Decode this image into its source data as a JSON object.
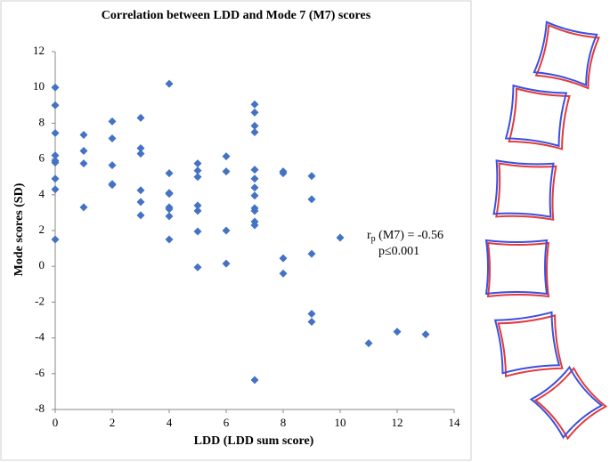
{
  "chart_data": {
    "type": "scatter",
    "title": "Correlation between LDD and Mode 7 (M7) scores",
    "x_label": "LDD (LDD sum score)",
    "y_label": "Mode scores (SD)",
    "annotation": {
      "r": "r",
      "subscript": "p",
      "rest": " (M7) = -0.56",
      "p_value": "p≤0.001"
    },
    "color": "#4472c4",
    "x": [
      0,
      0,
      0,
      0,
      0,
      0,
      0,
      0,
      0,
      1,
      1,
      1,
      1,
      2,
      2,
      2,
      2,
      2,
      3,
      3,
      3,
      3,
      3,
      3,
      4,
      4,
      4,
      4,
      4,
      4,
      4,
      4,
      5,
      5,
      5,
      5,
      5,
      5,
      5,
      6,
      6,
      6,
      6,
      7,
      7,
      7,
      7,
      7,
      7,
      7,
      7,
      7,
      7,
      7,
      7,
      7,
      8,
      8,
      8,
      8,
      9,
      9,
      9,
      9,
      9,
      10,
      11,
      12,
      13
    ],
    "values": [
      10.0,
      9.0,
      7.45,
      6.2,
      5.9,
      5.8,
      4.9,
      4.3,
      1.5,
      7.35,
      6.45,
      5.75,
      3.3,
      8.1,
      7.15,
      5.65,
      4.6,
      4.55,
      8.3,
      6.6,
      6.3,
      4.25,
      3.6,
      2.85,
      10.2,
      5.2,
      4.1,
      4.05,
      3.3,
      3.2,
      2.8,
      1.5,
      5.75,
      5.35,
      5.0,
      3.4,
      3.1,
      1.95,
      -0.05,
      6.15,
      5.3,
      2.0,
      0.15,
      9.05,
      8.6,
      7.85,
      7.5,
      5.4,
      4.9,
      4.4,
      3.95,
      3.25,
      3.1,
      2.5,
      2.3,
      -6.35,
      5.3,
      5.2,
      0.45,
      -0.4,
      5.05,
      3.75,
      0.7,
      -2.65,
      -3.1,
      1.6,
      -4.3,
      -3.65,
      -3.8
    ],
    "xlim": [
      0,
      14
    ],
    "xticks": [
      0,
      2,
      4,
      6,
      8,
      10,
      12,
      14
    ],
    "ylim": [
      -8,
      12
    ],
    "yticks": [
      -8,
      -6,
      -4,
      -2,
      0,
      2,
      4,
      6,
      8,
      10,
      12
    ],
    "grid": false
  }
}
